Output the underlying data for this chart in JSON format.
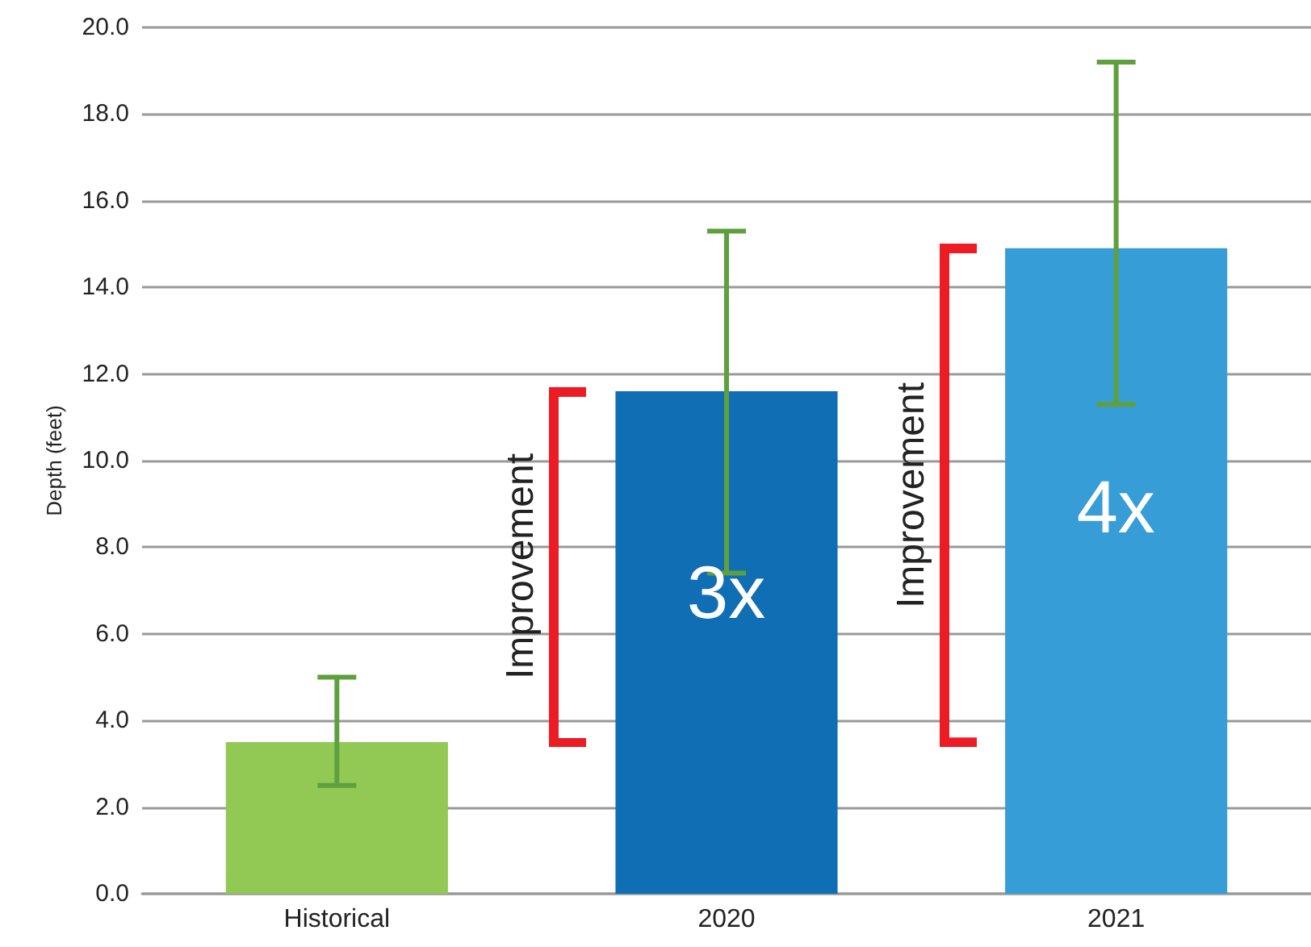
{
  "chart_data": {
    "type": "bar",
    "ylabel": "Depth (feet)",
    "categories": [
      "Historical",
      "2020",
      "2021"
    ],
    "values": [
      3.5,
      11.6,
      14.9
    ],
    "colors": [
      "#92c854",
      "#106eb5",
      "#369dd7"
    ],
    "errors": [
      [
        2.5,
        5.0
      ],
      [
        7.4,
        15.3
      ],
      [
        11.3,
        19.2
      ]
    ],
    "ylim": [
      0,
      20
    ],
    "yticks": [
      {
        "value": 0,
        "label": "0.0"
      },
      {
        "value": 2,
        "label": "2.0"
      },
      {
        "value": 4,
        "label": "4.0"
      },
      {
        "value": 6,
        "label": "6.0"
      },
      {
        "value": 8,
        "label": "8.0"
      },
      {
        "value": 10,
        "label": "10.0"
      },
      {
        "value": 12,
        "label": "12.0"
      },
      {
        "value": 14,
        "label": "14.0"
      },
      {
        "value": 16,
        "label": "16.0"
      },
      {
        "value": 18,
        "label": "18.0"
      },
      {
        "value": 20,
        "label": "20.0"
      }
    ],
    "grid": "y",
    "annotations": [
      "Improvement",
      "3x",
      "Improvement",
      "4x"
    ]
  }
}
